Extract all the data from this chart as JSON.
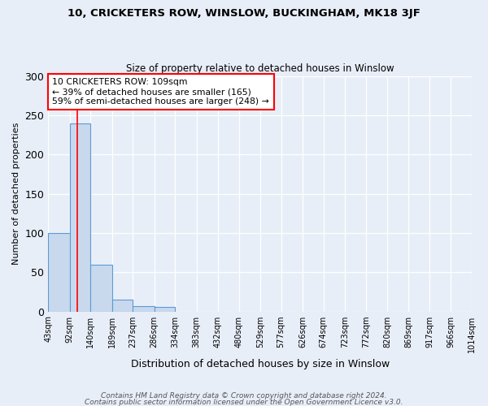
{
  "title1": "10, CRICKETERS ROW, WINSLOW, BUCKINGHAM, MK18 3JF",
  "title2": "Size of property relative to detached houses in Winslow",
  "xlabel": "Distribution of detached houses by size in Winslow",
  "ylabel": "Number of detached properties",
  "footnote1": "Contains HM Land Registry data © Crown copyright and database right 2024.",
  "footnote2": "Contains public sector information licensed under the Open Government Licence v3.0.",
  "annotation_line1": "10 CRICKETERS ROW: 109sqm",
  "annotation_line2": "← 39% of detached houses are smaller (165)",
  "annotation_line3": "59% of semi-detached houses are larger (248) →",
  "bar_edges": [
    43,
    92,
    140,
    189,
    237,
    286,
    334,
    383,
    432,
    480,
    529,
    577,
    626,
    674,
    723,
    772,
    820,
    869,
    917,
    966,
    1014
  ],
  "bar_heights": [
    100,
    240,
    60,
    15,
    7,
    6,
    0,
    0,
    0,
    0,
    0,
    0,
    0,
    0,
    0,
    0,
    0,
    0,
    0,
    0
  ],
  "bar_color": "#c8d9ee",
  "bar_edgecolor": "#5b9bd5",
  "red_line_x": 109,
  "ylim": [
    0,
    300
  ],
  "yticks": [
    0,
    50,
    100,
    150,
    200,
    250,
    300
  ],
  "background_color": "#e8eef8",
  "grid_color": "#ffffff"
}
